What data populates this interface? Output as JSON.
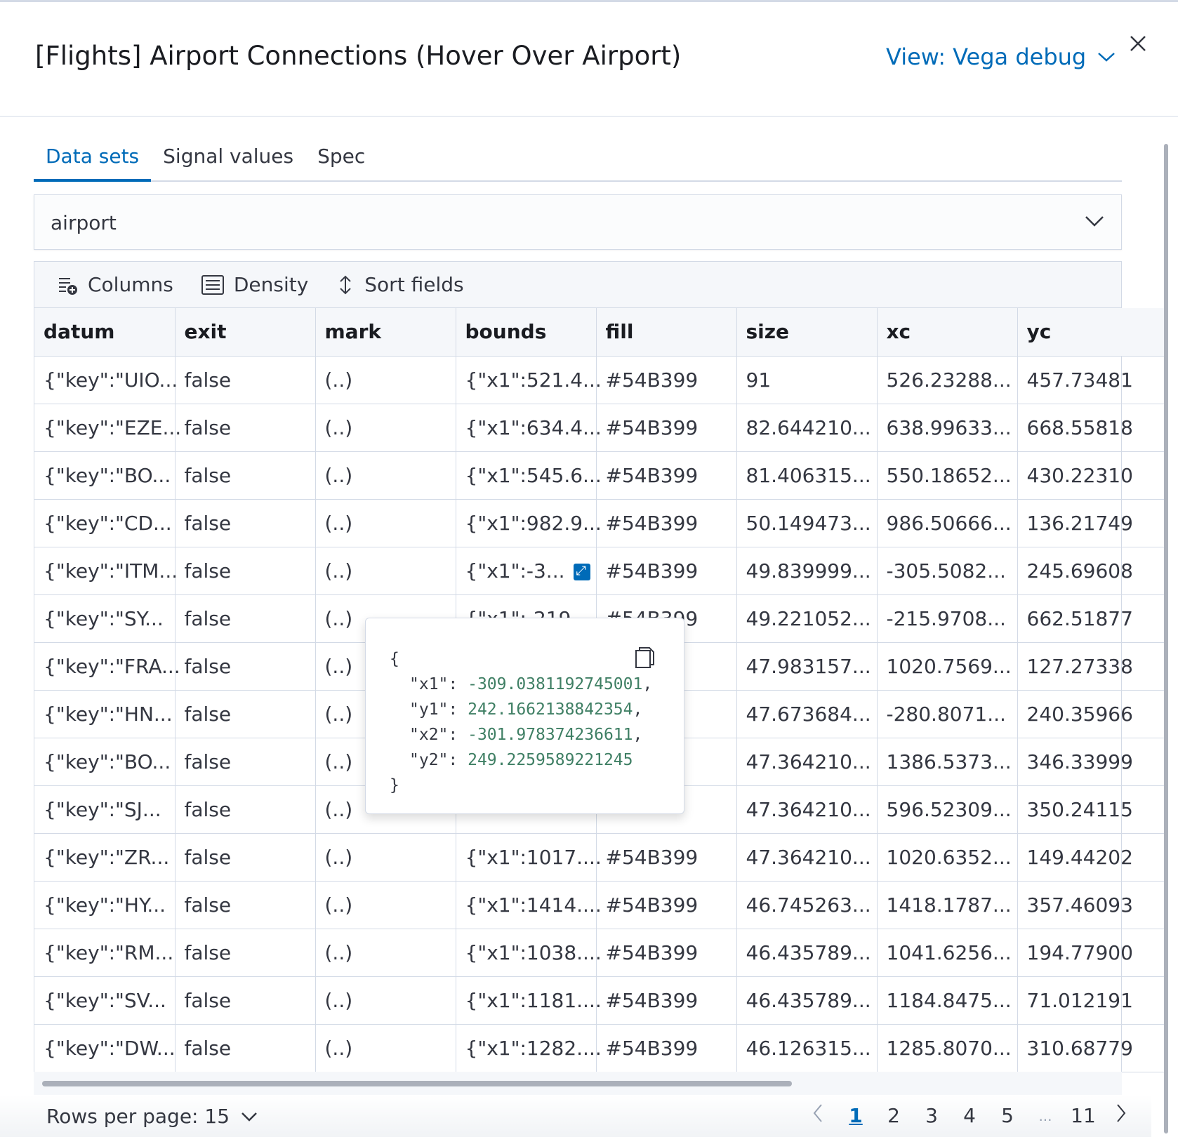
{
  "header": {
    "title": "[Flights] Airport Connections (Hover Over Airport)",
    "view_label": "View: Vega debug"
  },
  "tabs": [
    {
      "label": "Data sets",
      "active": true
    },
    {
      "label": "Signal values"
    },
    {
      "label": "Spec"
    }
  ],
  "dataset_select": {
    "value": "airport"
  },
  "toolbar": {
    "columns": "Columns",
    "density": "Density",
    "sort": "Sort fields"
  },
  "table": {
    "columns": [
      "datum",
      "exit",
      "mark",
      "bounds",
      "fill",
      "size",
      "xc",
      "yc"
    ],
    "rows": [
      [
        "{\"key\":\"UIO...",
        "false",
        "(..)",
        "{\"x1\":521.4...",
        "#54B399",
        "91",
        "526.23288...",
        "457.73481"
      ],
      [
        "{\"key\":\"EZE...",
        "false",
        "(..)",
        "{\"x1\":634.4...",
        "#54B399",
        "82.644210...",
        "638.99633...",
        "668.55818"
      ],
      [
        "{\"key\":\"BO...",
        "false",
        "(..)",
        "{\"x1\":545.6...",
        "#54B399",
        "81.406315...",
        "550.18652...",
        "430.22310"
      ],
      [
        "{\"key\":\"CD...",
        "false",
        "(..)",
        "{\"x1\":982.9...",
        "#54B399",
        "50.149473...",
        "986.50666...",
        "136.21749"
      ],
      [
        "{\"key\":\"ITM...",
        "false",
        "(..)",
        "{\"x1\":-3...",
        "#54B399",
        "49.839999...",
        "-305.5082...",
        "245.69608"
      ],
      [
        "{\"key\":\"SY...",
        "false",
        "(..)",
        "{\"x1\":-219...",
        "#54B399",
        "49.221052...",
        "-215.9708...",
        "662.51877"
      ],
      [
        "{\"key\":\"FRA...",
        "false",
        "(..)",
        "",
        "",
        "47.983157...",
        "1020.7569...",
        "127.27338"
      ],
      [
        "{\"key\":\"HN...",
        "false",
        "(..)",
        "",
        "",
        "47.673684...",
        "-280.8071...",
        "240.35966"
      ],
      [
        "{\"key\":\"BO...",
        "false",
        "(..)",
        "",
        "",
        "47.364210...",
        "1386.5373...",
        "346.33999"
      ],
      [
        "{\"key\":\"SJ...",
        "false",
        "(..)",
        "",
        "",
        "47.364210...",
        "596.52309...",
        "350.24115"
      ],
      [
        "{\"key\":\"ZR...",
        "false",
        "(..)",
        "{\"x1\":1017....",
        "#54B399",
        "47.364210...",
        "1020.6352...",
        "149.44202"
      ],
      [
        "{\"key\":\"HY...",
        "false",
        "(..)",
        "{\"x1\":1414....",
        "#54B399",
        "46.745263...",
        "1418.1787...",
        "357.46093"
      ],
      [
        "{\"key\":\"RM...",
        "false",
        "(..)",
        "{\"x1\":1038....",
        "#54B399",
        "46.435789...",
        "1041.6256...",
        "194.77900"
      ],
      [
        "{\"key\":\"SV...",
        "false",
        "(..)",
        "{\"x1\":1181....",
        "#54B399",
        "46.435789...",
        "1184.8475...",
        "71.012191"
      ],
      [
        "{\"key\":\"DW...",
        "false",
        "(..)",
        "{\"x1\":1282....",
        "#54B399",
        "46.126315...",
        "1285.8070...",
        "310.68779"
      ]
    ]
  },
  "popover": {
    "open": "{",
    "close": "}",
    "entries": [
      {
        "key": "\"x1\": ",
        "value": "-309.0381192745001",
        ",": ","
      },
      {
        "key": "\"y1\": ",
        "value": "242.1662138842354"
      },
      {
        "key": "\"x2\": ",
        "value": "-301.978374236611"
      },
      {
        "key": "\"y2\": ",
        "value": "249.2259589221245"
      }
    ]
  },
  "pagination": {
    "rows_per_page": "Rows per page: 15",
    "pages": [
      "1",
      "2",
      "3",
      "4",
      "5"
    ],
    "ellipsis": "...",
    "last": "11",
    "current": "1"
  },
  "colors": {
    "accent": "#006bb8",
    "fill": "#54B399"
  }
}
